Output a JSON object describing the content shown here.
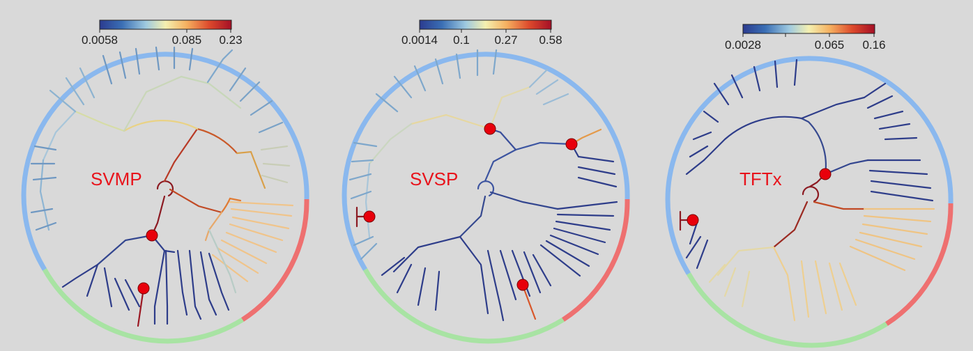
{
  "colors": {
    "background": "#d9d9d9",
    "label_red": "#e8131b",
    "node_marker": "#e8000b",
    "clade_blue": "#8ab8ee",
    "clade_red": "#ee7070",
    "clade_green": "#a8e3a3",
    "colormap": [
      "#2b3b8f",
      "#3a6fb5",
      "#9ec9e0",
      "#f4f0b0",
      "#f5b060",
      "#dd4a2c",
      "#a50f26"
    ]
  },
  "panels": [
    {
      "label": "SVMP",
      "colorbar_ticks": [
        "0.0058",
        "0.085",
        "0.23"
      ],
      "arcs": [
        {
          "clade": "blue",
          "from_deg": -88,
          "to_deg": 106
        },
        {
          "clade": "green",
          "from_deg": 108,
          "to_deg": 180
        },
        {
          "clade": "red",
          "from_deg": 182,
          "to_deg": 268
        }
      ],
      "marked_nodes": 2
    },
    {
      "label": "SVSP",
      "colorbar_ticks": [
        "0.0014",
        "0.1",
        "0.27",
        "0.58"
      ],
      "arcs": [
        {
          "clade": "blue",
          "from_deg": -88,
          "to_deg": 106
        },
        {
          "clade": "green",
          "from_deg": 108,
          "to_deg": 180
        },
        {
          "clade": "red",
          "from_deg": 182,
          "to_deg": 268
        }
      ],
      "marked_nodes": 4
    },
    {
      "label": "TFTx",
      "colorbar_ticks": [
        "0.0028",
        "0.065",
        "0.16"
      ],
      "arcs": [
        {
          "clade": "blue",
          "from_deg": -88,
          "to_deg": 106
        },
        {
          "clade": "green",
          "from_deg": 108,
          "to_deg": 180
        },
        {
          "clade": "red",
          "from_deg": 182,
          "to_deg": 268
        }
      ],
      "marked_nodes": 2
    }
  ]
}
